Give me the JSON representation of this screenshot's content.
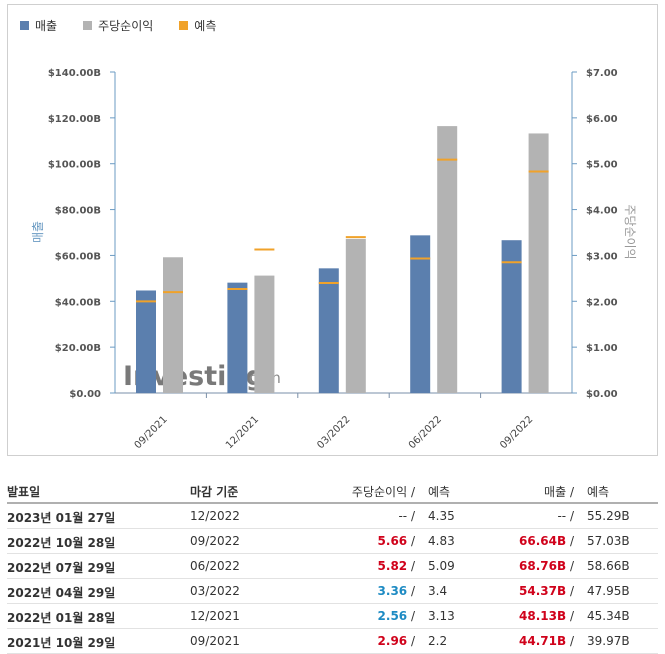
{
  "legend": {
    "revenue": "매출",
    "eps": "주당순이익",
    "forecast": "예측"
  },
  "colors": {
    "revenue": "#5b7fae",
    "eps": "#b3b3b3",
    "forecast": "#f0a22a",
    "axis": "#6b9bc3"
  },
  "watermark": {
    "brand": "Investing",
    "suffix": ".com"
  },
  "chart_data": {
    "type": "bar",
    "categories": [
      "09/2021",
      "12/2021",
      "03/2022",
      "06/2022",
      "09/2022"
    ],
    "left_axis": {
      "label": "매출",
      "ticks": [
        "$0.00",
        "$20.00B",
        "$40.00B",
        "$60.00B",
        "$80.00B",
        "$100.00B",
        "$120.00B",
        "$140.00B"
      ],
      "range": [
        0,
        140
      ]
    },
    "right_axis": {
      "label": "주당순이익",
      "ticks": [
        "$0.00",
        "$1.00",
        "$2.00",
        "$3.00",
        "$4.00",
        "$5.00",
        "$6.00",
        "$7.00"
      ],
      "range": [
        0,
        7
      ]
    },
    "series": [
      {
        "name": "매출",
        "axis": "left",
        "values": [
          44.71,
          48.13,
          54.37,
          68.76,
          66.64
        ]
      },
      {
        "name": "주당순이익",
        "axis": "right",
        "values": [
          2.96,
          2.56,
          3.36,
          5.82,
          5.66
        ]
      }
    ],
    "forecasts": {
      "revenue": [
        39.97,
        45.34,
        47.95,
        58.66,
        57.03
      ],
      "eps": [
        2.2,
        3.13,
        3.4,
        5.09,
        4.83
      ]
    },
    "grid": false
  },
  "table": {
    "headers": {
      "date": "발표일",
      "period": "마감 기준",
      "eps": "주당순이익",
      "eps_fc": "예측",
      "rev": "매출",
      "rev_fc": "예측",
      "slash": "/"
    },
    "rows": [
      {
        "date": "2023년 01월 27일",
        "period": "12/2022",
        "eps": "--",
        "eps_fc": "4.35",
        "rev": "--",
        "rev_fc": "55.29B",
        "eps_style": "plain",
        "rev_style": "plain"
      },
      {
        "date": "2022년 10월 28일",
        "period": "09/2022",
        "eps": "5.66",
        "eps_fc": "4.83",
        "rev": "66.64B",
        "rev_fc": "57.03B",
        "eps_style": "red",
        "rev_style": "red"
      },
      {
        "date": "2022년 07월 29일",
        "period": "06/2022",
        "eps": "5.82",
        "eps_fc": "5.09",
        "rev": "68.76B",
        "rev_fc": "58.66B",
        "eps_style": "red",
        "rev_style": "red"
      },
      {
        "date": "2022년 04월 29일",
        "period": "03/2022",
        "eps": "3.36",
        "eps_fc": "3.4",
        "rev": "54.37B",
        "rev_fc": "47.95B",
        "eps_style": "blue",
        "rev_style": "red"
      },
      {
        "date": "2022년 01월 28일",
        "period": "12/2021",
        "eps": "2.56",
        "eps_fc": "3.13",
        "rev": "48.13B",
        "rev_fc": "45.34B",
        "eps_style": "blue",
        "rev_style": "red"
      },
      {
        "date": "2021년 10월 29일",
        "period": "09/2021",
        "eps": "2.96",
        "eps_fc": "2.2",
        "rev": "44.71B",
        "rev_fc": "39.97B",
        "eps_style": "red",
        "rev_style": "red"
      }
    ]
  }
}
